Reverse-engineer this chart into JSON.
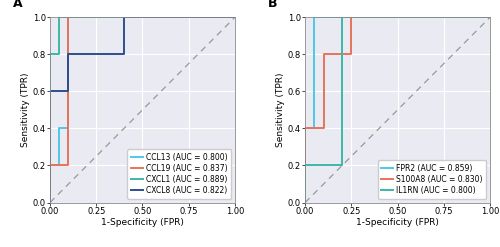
{
  "panel_A": {
    "label": "A",
    "curves": [
      {
        "name": "CCL13 (AUC = 0.800)",
        "color": "#4DC8E8",
        "fpr": [
          0.0,
          0.0,
          0.05,
          0.05,
          0.1,
          0.1,
          1.0
        ],
        "tpr": [
          0.0,
          0.2,
          0.2,
          0.4,
          0.4,
          1.0,
          1.0
        ]
      },
      {
        "name": "CCL19 (AUC = 0.837)",
        "color": "#E8725A",
        "fpr": [
          0.0,
          0.0,
          0.1,
          0.1,
          0.3,
          0.3,
          1.0
        ],
        "tpr": [
          0.0,
          0.2,
          0.2,
          1.0,
          1.0,
          1.0,
          1.0
        ]
      },
      {
        "name": "CXCL1 (AUC = 0.889)",
        "color": "#3CB8A8",
        "fpr": [
          0.0,
          0.0,
          0.05,
          0.05,
          0.15,
          0.15,
          1.0
        ],
        "tpr": [
          0.0,
          0.8,
          0.8,
          1.0,
          1.0,
          1.0,
          1.0
        ]
      },
      {
        "name": "CXCL8 (AUC = 0.822)",
        "color": "#2E4E8E",
        "fpr": [
          0.0,
          0.0,
          0.1,
          0.1,
          0.4,
          0.4,
          1.0
        ],
        "tpr": [
          0.0,
          0.6,
          0.6,
          0.8,
          0.8,
          1.0,
          1.0
        ]
      }
    ],
    "xlabel": "1-Specificity (FPR)",
    "ylabel": "Sensitivity (TPR)",
    "xlim": [
      0.0,
      1.0
    ],
    "ylim": [
      0.0,
      1.0
    ],
    "xticks": [
      0.0,
      0.25,
      0.5,
      0.75,
      1.0
    ],
    "yticks": [
      0.0,
      0.2,
      0.4,
      0.6,
      0.8,
      1.0
    ]
  },
  "panel_B": {
    "label": "B",
    "curves": [
      {
        "name": "FPR2 (AUC = 0.859)",
        "color": "#4DC8E8",
        "fpr": [
          0.0,
          0.0,
          0.05,
          0.05,
          0.3,
          0.3,
          1.0
        ],
        "tpr": [
          0.0,
          0.4,
          0.4,
          1.0,
          1.0,
          1.0,
          1.0
        ]
      },
      {
        "name": "S100A8 (AUC = 0.830)",
        "color": "#E8725A",
        "fpr": [
          0.0,
          0.0,
          0.1,
          0.1,
          0.25,
          0.25,
          1.0
        ],
        "tpr": [
          0.0,
          0.4,
          0.4,
          0.8,
          0.8,
          1.0,
          1.0
        ]
      },
      {
        "name": "IL1RN (AUC = 0.800)",
        "color": "#3CB8A8",
        "fpr": [
          0.0,
          0.0,
          0.2,
          0.2,
          0.3,
          0.3,
          1.0
        ],
        "tpr": [
          0.0,
          0.2,
          0.2,
          1.0,
          1.0,
          1.0,
          1.0
        ]
      }
    ],
    "xlabel": "1-Specificity (FPR)",
    "ylabel": "Sensitivity (TPR)",
    "xlim": [
      0.0,
      1.0
    ],
    "ylim": [
      0.0,
      1.0
    ],
    "xticks": [
      0.0,
      0.25,
      0.5,
      0.75,
      1.0
    ],
    "yticks": [
      0.0,
      0.2,
      0.4,
      0.6,
      0.8,
      1.0
    ]
  },
  "fig_facecolor": "#ffffff",
  "ax_facecolor": "#EAEAF2",
  "grid_color": "#ffffff",
  "diag_color": "#999999",
  "linewidth": 1.4,
  "fontsize_label": 6.5,
  "fontsize_tick": 6.0,
  "fontsize_legend": 5.5,
  "fontsize_panel": 9,
  "legend_loc": "lower right"
}
